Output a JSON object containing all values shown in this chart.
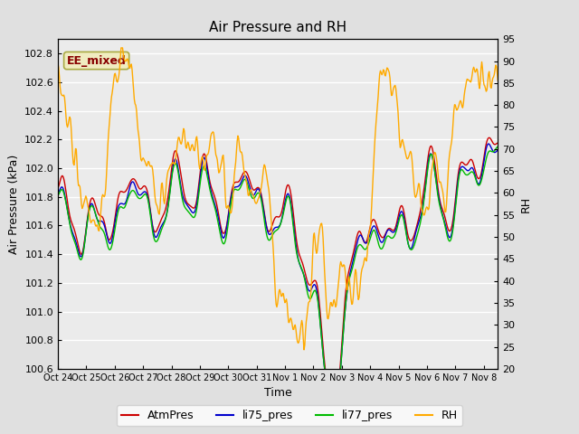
{
  "title": "Air Pressure and RH",
  "xlabel": "Time",
  "ylabel_left": "Air Pressure (kPa)",
  "ylabel_right": "RH",
  "ylim_left": [
    100.6,
    102.9
  ],
  "ylim_right": [
    20,
    95
  ],
  "yticks_left": [
    100.6,
    100.8,
    101.0,
    101.2,
    101.4,
    101.6,
    101.8,
    102.0,
    102.2,
    102.4,
    102.6,
    102.8
  ],
  "yticks_right": [
    20,
    25,
    30,
    35,
    40,
    45,
    50,
    55,
    60,
    65,
    70,
    75,
    80,
    85,
    90,
    95
  ],
  "xtick_labels": [
    "Oct 24",
    "Oct 25",
    "Oct 26",
    "Oct 27",
    "Oct 28",
    "Oct 29",
    "Oct 30",
    "Oct 31",
    "Nov 1",
    "Nov 2",
    "Nov 3",
    "Nov 4",
    "Nov 5",
    "Nov 6",
    "Nov 7",
    "Nov 8"
  ],
  "legend_entries": [
    "AtmPres",
    "li75_pres",
    "li77_pres",
    "RH"
  ],
  "colors": {
    "AtmPres": "#cc0000",
    "li75_pres": "#0000cc",
    "li77_pres": "#00bb00",
    "RH": "#ffaa00"
  },
  "annotation_text": "EE_mixed",
  "annotation_color": "#880000",
  "annotation_bg": "#f0ecc0",
  "annotation_edge": "#aaaa44",
  "fig_bg": "#e0e0e0",
  "plot_bg": "#ebebeb",
  "grid_color": "#ffffff",
  "title_fontsize": 11,
  "label_fontsize": 9,
  "tick_fontsize": 8,
  "legend_fontsize": 9
}
